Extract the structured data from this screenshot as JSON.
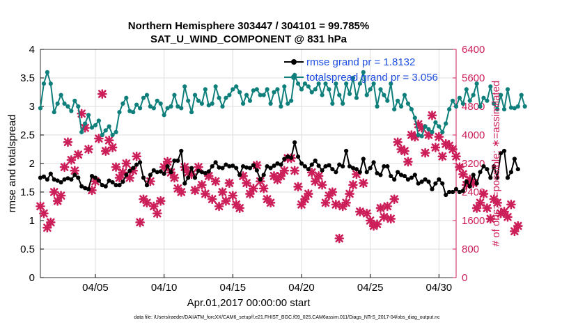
{
  "chart_data": {
    "type": "line",
    "title_line1": "Northern Hemisphere 303447 / 304101 = 99.785%",
    "title_line2": "SAT_U_WIND_COMPONENT @ 831 hPa",
    "xlabel": "Apr.01,2017 00:00:00 start",
    "ylabel_left": "rmse and totalspread",
    "ylabel_right": "# of obs: o=possible; ∗=assimilated",
    "footer": "data file: /Users/raeder/DAI/ATM_forcXX/CAM6_setup/f.e21.FHIST_BGC.f09_025.CAM6assim.011/Diags_NTrS_2017-04/obs_diag_output.nc",
    "xlim": [
      1.0,
      31.25
    ],
    "ylim_left": [
      0,
      4
    ],
    "ylim_right": [
      0,
      6400
    ],
    "x_ticks": [
      5,
      10,
      15,
      20,
      25,
      30
    ],
    "x_tick_labels": [
      "04/05",
      "04/10",
      "04/15",
      "04/20",
      "04/25",
      "04/30"
    ],
    "y_ticks_left": [
      0,
      0.5,
      1,
      1.5,
      2,
      2.5,
      3,
      3.5,
      4
    ],
    "y_tick_labels_left": [
      "0",
      "0.5",
      "1",
      "1.5",
      "2",
      "2.5",
      "3",
      "3.5",
      "4"
    ],
    "y_ticks_right": [
      0,
      800,
      1600,
      2400,
      3200,
      4000,
      4800,
      5600,
      6400
    ],
    "y_tick_labels_right": [
      "0",
      "800",
      "1600",
      "2400",
      "3200",
      "4000",
      "4800",
      "5600",
      "6400"
    ],
    "grid": true,
    "legend": [
      {
        "label": "rmse grand pr = 1.8132",
        "color": "#000000"
      },
      {
        "label": "totalspread grand pr = 3.056",
        "color": "#0e7f7b"
      }
    ],
    "colors": {
      "rmse": "#000000",
      "spread": "#0e7f7b",
      "obs": "#cc1e58"
    },
    "x_start": 1.0,
    "x_step": 0.25,
    "series": [
      {
        "name": "rmse",
        "values": [
          1.75,
          1.77,
          1.72,
          1.82,
          1.72,
          1.7,
          1.67,
          1.72,
          1.74,
          1.72,
          1.8,
          1.75,
          1.6,
          1.57,
          1.55,
          1.78,
          1.75,
          1.7,
          1.62,
          1.6,
          1.7,
          1.67,
          1.62,
          1.62,
          1.68,
          1.8,
          1.87,
          1.92,
          1.98,
          2.02,
          1.75,
          1.62,
          1.8,
          1.88,
          1.85,
          1.86,
          1.82,
          1.95,
          1.85,
          2.05,
          2.05,
          2.22,
          1.65,
          1.75,
          1.92,
          1.75,
          1.87,
          1.85,
          1.83,
          1.86,
          1.95,
          2.02,
          1.93,
          1.92,
          1.98,
          1.95,
          1.96,
          1.92,
          1.8,
          1.95,
          1.93,
          1.92,
          1.97,
          1.88,
          1.72,
          1.8,
          1.95,
          1.92,
          1.96,
          2.0,
          1.98,
          2.08,
          2.12,
          2.1,
          2.37,
          2.12,
          2.0,
          1.95,
          1.9,
          1.98,
          2.05,
          1.96,
          1.88,
          1.95,
          1.97,
          1.9,
          1.85,
          1.98,
          1.95,
          2.22,
          1.95,
          1.92,
          1.9,
          1.85,
          2.08,
          1.85,
          1.92,
          2.02,
          1.83,
          1.8,
          1.95,
          1.95,
          1.78,
          1.72,
          1.85,
          1.8,
          1.78,
          1.72,
          1.75,
          1.8,
          1.65,
          1.68,
          1.72,
          1.68,
          1.55,
          1.65,
          1.72,
          1.65,
          1.45,
          1.5,
          1.5,
          1.55,
          1.5,
          1.52,
          1.68,
          1.6,
          1.8,
          1.65,
          1.85,
          1.95,
          1.9,
          1.75,
          1.95,
          1.75,
          2.18,
          2.22,
          1.75,
          1.85,
          2.08,
          1.9
        ]
      },
      {
        "name": "totalspread",
        "values": [
          2.97,
          3.4,
          3.6,
          3.4,
          2.9,
          3.05,
          3.2,
          3.05,
          3.0,
          2.92,
          3.1,
          3.0,
          2.55,
          2.7,
          2.85,
          2.63,
          2.67,
          2.75,
          2.5,
          2.58,
          2.65,
          2.5,
          2.55,
          2.9,
          3.05,
          3.15,
          2.92,
          2.9,
          3.03,
          2.97,
          3.15,
          3.2,
          3.0,
          2.97,
          3.1,
          3.05,
          2.85,
          2.97,
          3.0,
          3.2,
          3.0,
          2.97,
          3.35,
          3.1,
          2.9,
          3.2,
          3.1,
          3.05,
          3.3,
          3.02,
          3.05,
          3.35,
          3.15,
          3.0,
          3.15,
          3.2,
          3.3,
          3.35,
          3.25,
          3.05,
          3.2,
          3.1,
          3.28,
          3.3,
          3.2,
          3.2,
          3.3,
          3.05,
          3.25,
          3.3,
          3.0,
          3.35,
          3.05,
          3.1,
          3.55,
          3.4,
          3.3,
          3.4,
          3.35,
          3.25,
          3.3,
          3.4,
          3.2,
          3.4,
          3.3,
          3.05,
          3.4,
          3.2,
          3.05,
          3.4,
          3.22,
          3.5,
          3.15,
          3.4,
          3.6,
          3.2,
          3.3,
          3.4,
          3.0,
          3.3,
          3.2,
          3.1,
          3.4,
          2.95,
          3.1,
          3.0,
          3.2,
          3.05,
          2.95,
          2.8,
          2.5,
          2.48,
          2.65,
          2.6,
          2.55,
          2.72,
          2.65,
          2.55,
          2.7,
          2.95,
          3.1,
          3.0,
          3.15,
          3.05,
          3.3,
          3.1,
          3.2,
          3.4,
          3.0,
          3.15,
          3.1,
          3.35,
          3.05,
          2.95,
          3.2,
          2.95,
          3.3,
          2.98,
          2.97,
          3.0,
          3.2,
          3.0
        ]
      },
      {
        "name": "obs_assimilated",
        "values": [
          2000,
          1800,
          1400,
          1550,
          2400,
          2150,
          2300,
          3100,
          3800,
          3300,
          3000,
          3450,
          4600,
          4200,
          3600,
          2450,
          2700,
          3900,
          5150,
          3550,
          3850,
          3650,
          3100,
          2800,
          2950,
          3200,
          2800,
          3000,
          3400,
          1550,
          2200,
          2100,
          2700,
          2000,
          1800,
          2150,
          3100,
          3250,
          2950,
          2800,
          2500,
          2400,
          3100,
          2950,
          2900,
          2450,
          3100,
          2600,
          2350,
          2850,
          2200,
          2700,
          2000,
          2400,
          2150,
          2650,
          2300,
          2050,
          1950,
          2850,
          2650,
          2350,
          2500,
          3150,
          2700,
          2500,
          2200,
          2100,
          2850,
          2750,
          2850,
          3000,
          3350,
          3350,
          3000,
          2550,
          2050,
          2200,
          2350,
          2950,
          2700,
          2850,
          2600,
          2100,
          2300,
          2400,
          2050,
          1100,
          2000,
          2100,
          2350,
          2600,
          2900,
          1850,
          2650,
          1800,
          1600,
          1450,
          1500,
          1950,
          1700,
          2000,
          1650,
          2200,
          3800,
          3600,
          3550,
          3250,
          4000,
          3950,
          4300,
          4200,
          3500,
          4000,
          4550,
          3650,
          3950,
          3400,
          3750,
          3700,
          3600,
          3400,
          3100,
          2900,
          2600,
          2750,
          2650,
          1950,
          2100,
          2350,
          1950,
          1650,
          2200,
          2100,
          1800,
          1850,
          1700,
          2050,
          1300,
          1450
        ]
      }
    ]
  }
}
